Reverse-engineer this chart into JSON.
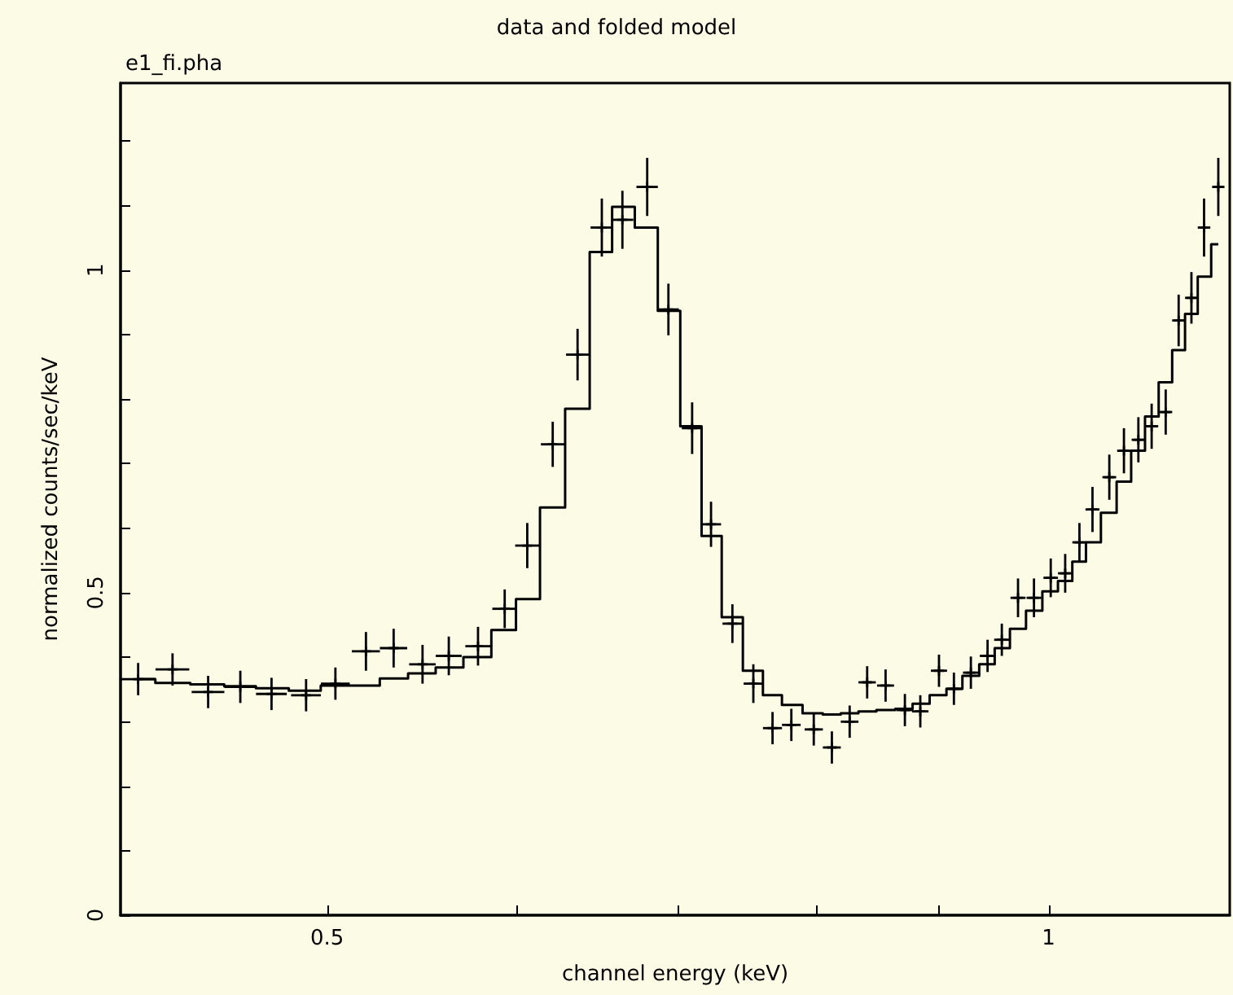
{
  "chart_data": {
    "type": "scatter",
    "title": "data and folded model",
    "subtitle": "e1_fi.pha",
    "xlabel": "channel energy (keV)",
    "ylabel": "normalized counts/sec/keV",
    "log": "x",
    "grid": false,
    "marker": "cross",
    "xlim": [
      0.41,
      1.19
    ],
    "xticks": [
      0.5,
      {
        "value": 0.6,
        "label": null
      },
      {
        "value": 0.7,
        "label": null
      },
      {
        "value": 0.8,
        "label": null
      },
      {
        "value": 0.9,
        "label": null
      },
      1
    ],
    "ylim": [
      0,
      1.29
    ],
    "yticks": [
      0,
      {
        "value": 0.1,
        "label": null
      },
      {
        "value": 0.2,
        "label": null
      },
      {
        "value": 0.3,
        "label": null
      },
      {
        "value": 0.4,
        "label": null
      },
      0.5,
      {
        "value": 0.6,
        "label": null
      },
      {
        "value": 0.7,
        "label": null
      },
      {
        "value": 0.8,
        "label": null
      },
      {
        "value": 0.9,
        "label": null
      },
      1,
      {
        "value": 1.1,
        "label": null
      },
      {
        "value": 1.2,
        "label": null
      }
    ],
    "series": [
      {
        "color": "#000000",
        "x": [
          0.417,
          0.431,
          0.446,
          0.46,
          0.474,
          0.49,
          0.504,
          0.519,
          0.533,
          0.548,
          0.562,
          0.578,
          0.593,
          0.606,
          0.621,
          0.636,
          0.651,
          0.664,
          0.68,
          0.694,
          0.71,
          0.723,
          0.738,
          0.753,
          0.767,
          0.781,
          0.798,
          0.812,
          0.826,
          0.84,
          0.855,
          0.871,
          0.884,
          0.9,
          0.913,
          0.928,
          0.943,
          0.956,
          0.971,
          0.986,
          1.002,
          1.016,
          1.03,
          1.043,
          1.06,
          1.075,
          1.09,
          1.104,
          1.119,
          1.133,
          1.147,
          1.161,
          1.177
        ],
        "values": [
          0.366,
          0.381,
          0.346,
          0.354,
          0.343,
          0.341,
          0.359,
          0.409,
          0.414,
          0.389,
          0.402,
          0.417,
          0.475,
          0.573,
          0.73,
          0.869,
          1.066,
          1.078,
          1.129,
          0.939,
          0.755,
          0.606,
          0.452,
          0.359,
          0.29,
          0.295,
          0.288,
          0.26,
          0.3,
          0.361,
          0.356,
          0.318,
          0.316,
          0.379,
          0.351,
          0.376,
          0.402,
          0.427,
          0.492,
          0.492,
          0.523,
          0.53,
          0.578,
          0.629,
          0.679,
          0.72,
          0.737,
          0.758,
          0.78,
          0.922,
          0.957,
          1.066,
          1.129
        ],
        "errors": [
          0.025,
          0.025,
          0.025,
          0.025,
          0.025,
          0.025,
          0.025,
          0.03,
          0.03,
          0.03,
          0.03,
          0.03,
          0.03,
          0.035,
          0.035,
          0.04,
          0.045,
          0.045,
          0.045,
          0.04,
          0.04,
          0.035,
          0.03,
          0.03,
          0.025,
          0.025,
          0.025,
          0.025,
          0.025,
          0.025,
          0.025,
          0.025,
          0.025,
          0.025,
          0.025,
          0.025,
          0.025,
          0.025,
          0.03,
          0.03,
          0.03,
          0.03,
          0.03,
          0.035,
          0.035,
          0.035,
          0.035,
          0.035,
          0.035,
          0.04,
          0.04,
          0.045,
          0.045
        ],
        "xerrors": [
          0.007,
          0.007,
          0.007,
          0.007,
          0.007,
          0.007,
          0.007,
          0.007,
          0.007,
          0.007,
          0.007,
          0.007,
          0.007,
          0.007,
          0.007,
          0.007,
          0.007,
          0.007,
          0.007,
          0.007,
          0.007,
          0.007,
          0.007,
          0.007,
          0.007,
          0.007,
          0.007,
          0.007,
          0.007,
          0.007,
          0.007,
          0.007,
          0.007,
          0.007,
          0.007,
          0.007,
          0.007,
          0.007,
          0.007,
          0.007,
          0.007,
          0.007,
          0.007,
          0.007,
          0.007,
          0.007,
          0.007,
          0.007,
          0.007,
          0.007,
          0.007,
          0.007,
          0.007
        ]
      },
      {
        "type": "step",
        "color": "#000000",
        "marker": "none",
        "line_style": "solid",
        "x": [
          0.417,
          0.431,
          0.446,
          0.46,
          0.474,
          0.49,
          0.504,
          0.519,
          0.533,
          0.548,
          0.562,
          0.578,
          0.593,
          0.606,
          0.621,
          0.636,
          0.651,
          0.664,
          0.68,
          0.694,
          0.71,
          0.723,
          0.738,
          0.753,
          0.767,
          0.781,
          0.798,
          0.812,
          0.826,
          0.84,
          0.855,
          0.871,
          0.884,
          0.9,
          0.913,
          0.928,
          0.943,
          0.956,
          0.971,
          0.986,
          1.002,
          1.016,
          1.03,
          1.043,
          1.06,
          1.075,
          1.09,
          1.104,
          1.119,
          1.133,
          1.147,
          1.161,
          1.177
        ],
        "values": [
          0.366,
          0.36,
          0.358,
          0.355,
          0.352,
          0.348,
          0.356,
          0.356,
          0.367,
          0.375,
          0.384,
          0.4,
          0.442,
          0.49,
          0.632,
          0.785,
          1.028,
          1.098,
          1.066,
          0.937,
          0.758,
          0.588,
          0.462,
          0.379,
          0.341,
          0.326,
          0.313,
          0.311,
          0.313,
          0.316,
          0.318,
          0.32,
          0.328,
          0.341,
          0.351,
          0.371,
          0.389,
          0.414,
          0.444,
          0.472,
          0.502,
          0.518,
          0.548,
          0.578,
          0.624,
          0.672,
          0.72,
          0.773,
          0.826,
          0.876,
          0.932,
          0.99,
          1.04
        ]
      }
    ]
  }
}
